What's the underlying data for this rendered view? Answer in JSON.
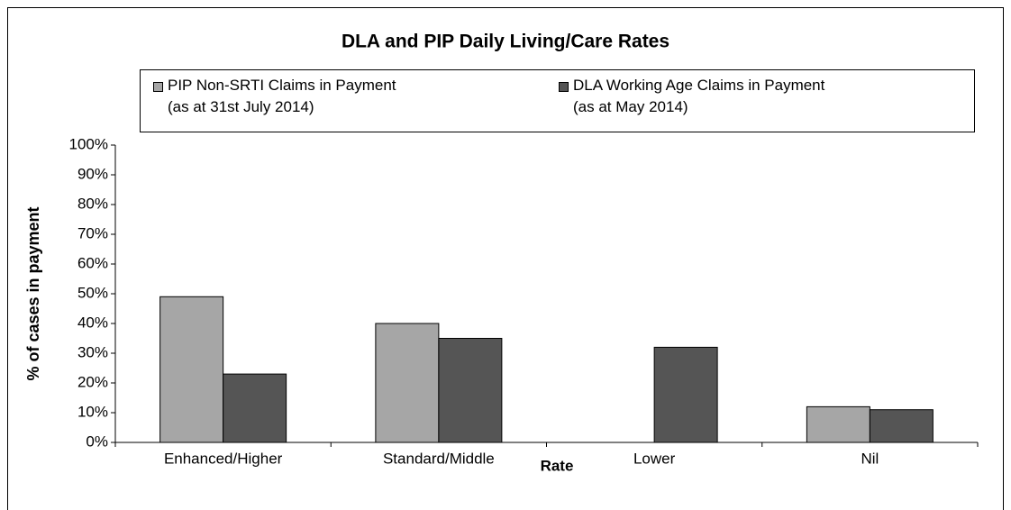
{
  "chart_data": {
    "type": "bar",
    "title": "DLA and PIP Daily Living/Care Rates",
    "x_label": "Rate",
    "y_label": "% of cases in payment",
    "categories": [
      "Enhanced/Higher",
      "Standard/Middle",
      "Lower",
      "Nil"
    ],
    "series": [
      {
        "name": "PIP Non-SRTI Claims in Payment\n(as at 31st July 2014)",
        "color": "#a6a6a6",
        "values": [
          49,
          40,
          null,
          12
        ]
      },
      {
        "name": "DLA Working Age Claims in Payment\n(as at May 2014)",
        "color": "#555555",
        "values": [
          23,
          35,
          32,
          11
        ]
      }
    ],
    "ylim": [
      0,
      100
    ],
    "yticks": [
      {
        "value": 0,
        "label": "0%"
      },
      {
        "value": 10,
        "label": "10%"
      },
      {
        "value": 20,
        "label": "20%"
      },
      {
        "value": 30,
        "label": "30%"
      },
      {
        "value": 40,
        "label": "40%"
      },
      {
        "value": 50,
        "label": "50%"
      },
      {
        "value": 60,
        "label": "60%"
      },
      {
        "value": 70,
        "label": "70%"
      },
      {
        "value": 80,
        "label": "80%"
      },
      {
        "value": 90,
        "label": "90%"
      },
      {
        "value": 100,
        "label": "100%"
      }
    ],
    "grid": false,
    "legend": "top"
  }
}
